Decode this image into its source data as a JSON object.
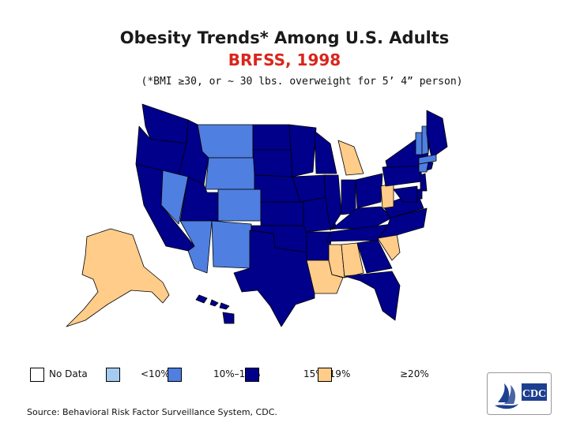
{
  "header": {
    "title": "Obesity Trends* Among U.S. Adults",
    "subtitle": "BRFSS, 1998",
    "note": "(*BMI ≥30, or ~ 30 lbs. overweight for 5’ 4” person)"
  },
  "colors": {
    "no_data": "#ffffff",
    "lt10": "#a6cbf0",
    "r10_14": "#4f7fe0",
    "r15_19": "#00008b",
    "gte20": "#ffcc8a",
    "subtitle": "#d9261c",
    "border": "#000000"
  },
  "legend": [
    {
      "label": "No Data",
      "color_key": "no_data"
    },
    {
      "label": "<10%",
      "color_key": "lt10"
    },
    {
      "label": "10%–14%",
      "color_key": "r10_14"
    },
    {
      "label": "15%–19%",
      "color_key": "r15_19"
    },
    {
      "label": "≥20%",
      "color_key": "gte20"
    }
  ],
  "source": "Source: Behavioral Risk Factor Surveillance System, CDC.",
  "logo": {
    "text": "CDC",
    "icon": "hhs-eagle-icon"
  },
  "states": {
    "WA": "r15_19",
    "OR": "r15_19",
    "CA": "r15_19",
    "ID": "r15_19",
    "NV": "r10_14",
    "MT": "r10_14",
    "WY": "r10_14",
    "UT": "r15_19",
    "CO": "r10_14",
    "AZ": "r10_14",
    "NM": "r10_14",
    "ND": "r15_19",
    "SD": "r15_19",
    "NE": "r15_19",
    "KS": "r15_19",
    "OK": "r15_19",
    "TX": "r15_19",
    "MN": "r15_19",
    "IA": "r15_19",
    "MO": "r15_19",
    "AR": "r15_19",
    "LA": "gte20",
    "WI": "r15_19",
    "IL": "r15_19",
    "MI": "gte20",
    "IN": "r15_19",
    "OH": "r15_19",
    "KY": "r15_19",
    "TN": "r15_19",
    "MS": "gte20",
    "AL": "gte20",
    "GA": "r15_19",
    "FL": "r15_19",
    "SC": "gte20",
    "NC": "r15_19",
    "VA": "r15_19",
    "WV": "gte20",
    "PA": "r15_19",
    "NY": "r15_19",
    "VT": "r10_14",
    "NH": "r10_14",
    "ME": "r15_19",
    "MA": "r10_14",
    "CT": "r10_14",
    "RI": "r15_19",
    "NJ": "r15_19",
    "DE": "r15_19",
    "MD": "r15_19",
    "AK": "gte20",
    "HI": "r15_19"
  }
}
